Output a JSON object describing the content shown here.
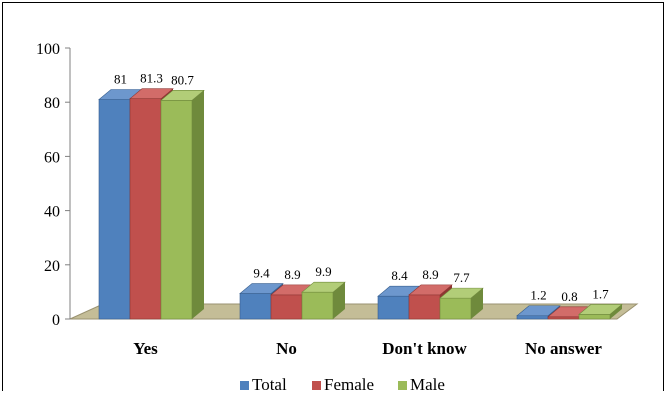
{
  "chart_data": {
    "type": "bar",
    "title": "",
    "xlabel": "",
    "ylabel": "",
    "ylim": [
      0,
      100
    ],
    "yticks": [
      0,
      20,
      40,
      60,
      80,
      100
    ],
    "categories": [
      "Yes",
      "No",
      "Don't know",
      "No answer"
    ],
    "series": [
      {
        "name": "Total",
        "values": [
          81,
          9.4,
          8.4,
          1.2
        ],
        "color": "#4f81bd",
        "side": "#375f8f",
        "top": "#6d97cd"
      },
      {
        "name": "Female",
        "values": [
          81.3,
          8.9,
          8.9,
          0.8
        ],
        "color": "#c0504d",
        "side": "#8e3532",
        "top": "#d26c69"
      },
      {
        "name": "Male",
        "values": [
          80.7,
          9.9,
          7.7,
          1.7
        ],
        "color": "#9bbb59",
        "side": "#6f8a3c",
        "top": "#b2cd78"
      }
    ],
    "value_labels": [
      [
        "81",
        "9.4",
        "8.4",
        "1.2"
      ],
      [
        "81.3",
        "8.9",
        "8.9",
        "0.8"
      ],
      [
        "80.7",
        "9.9",
        "7.7",
        "1.7"
      ]
    ],
    "legend_position": "bottom",
    "grid": false,
    "floor_color": "#c4bd97"
  }
}
